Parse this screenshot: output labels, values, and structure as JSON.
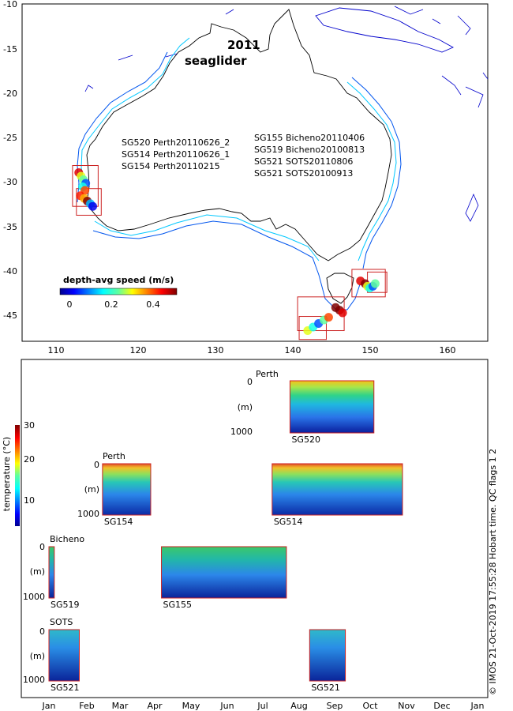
{
  "chart_data": [
    {
      "type": "map",
      "title": "2011",
      "subtitle": "seaglider",
      "xlim": [
        105,
        165
      ],
      "ylim": [
        -48,
        -10
      ],
      "xticks": [
        110,
        120,
        130,
        140,
        150,
        160
      ],
      "yticks": [
        -10,
        -15,
        -20,
        -25,
        -30,
        -35,
        -40,
        -45
      ],
      "deployments_west": [
        "SG520 Perth20110626_2",
        "SG514 Perth20110626_1",
        "SG154 Perth20110215"
      ],
      "deployments_east": [
        "SG155 Bicheno20110406",
        "SG519 Bicheno20100813",
        "SG521 SOTS20110806",
        "SG521 SOTS20100913"
      ],
      "colorbar": {
        "label": "depth-avg speed (m/s)",
        "ticks": [
          "0",
          "0.2",
          "0.4"
        ],
        "range": [
          0,
          0.5
        ]
      },
      "regions": [
        {
          "name": "perth-box-1",
          "lon": [
            111.5,
            114.8
          ],
          "lat": [
            -32.8,
            -28.2
          ]
        },
        {
          "name": "perth-box-2",
          "lon": [
            112.0,
            115.2
          ],
          "lat": [
            -33.8,
            -30.8
          ]
        },
        {
          "name": "bicheno-box-1",
          "lon": [
            147.5,
            151.8
          ],
          "lat": [
            -43.0,
            -39.9
          ]
        },
        {
          "name": "bicheno-box-2",
          "lon": [
            149.5,
            152.0
          ],
          "lat": [
            -42.5,
            -40.2
          ]
        },
        {
          "name": "sots-box-1",
          "lon": [
            140.5,
            146.5
          ],
          "lat": [
            -46.8,
            -43.0
          ]
        },
        {
          "name": "sots-box-2",
          "lon": [
            140.7,
            144.2
          ],
          "lat": [
            -47.8,
            -45.2
          ]
        }
      ],
      "tracks": [
        {
          "name": "track-perth-520",
          "lon": [
            112.3,
            112.6,
            112.9,
            113.2,
            112.8,
            113.1
          ],
          "lat": [
            -29.0,
            -29.4,
            -29.8,
            -30.2,
            -30.6,
            -31.0
          ],
          "speed": [
            0.45,
            0.3,
            0.25,
            0.1,
            0.2,
            0.4
          ]
        },
        {
          "name": "track-perth-514",
          "lon": [
            112.5,
            113.0,
            113.4,
            113.8,
            114.1
          ],
          "lat": [
            -31.6,
            -31.9,
            -32.2,
            -32.5,
            -32.8
          ],
          "speed": [
            0.42,
            0.35,
            0.5,
            0.15,
            0.05
          ]
        },
        {
          "name": "track-bicheno",
          "lon": [
            148.6,
            149.2,
            149.5,
            149.8,
            150.2,
            150.5
          ],
          "lat": [
            -41.2,
            -41.5,
            -41.8,
            -42.0,
            -41.8,
            -41.5
          ],
          "speed": [
            0.45,
            0.5,
            0.3,
            0.2,
            0.1,
            0.25
          ]
        },
        {
          "name": "track-sots-2011",
          "lon": [
            145.4,
            145.9,
            146.3
          ],
          "lat": [
            -44.2,
            -44.5,
            -44.8
          ],
          "speed": [
            0.5,
            0.5,
            0.45
          ]
        },
        {
          "name": "track-sots-2010",
          "lon": [
            141.8,
            142.5,
            143.2,
            143.9,
            144.5
          ],
          "lat": [
            -46.8,
            -46.4,
            -46.0,
            -45.6,
            -45.3
          ],
          "speed": [
            0.3,
            0.2,
            0.1,
            0.25,
            0.4
          ]
        }
      ]
    },
    {
      "type": "heatmap",
      "ylabel": "temperature (°C)",
      "colorbar_ticks": [
        "10",
        "20",
        "30"
      ],
      "colorbar_range": [
        0,
        30
      ],
      "months": [
        "Jan",
        "Feb",
        "Mar",
        "Apr",
        "May",
        "Jun",
        "Jul",
        "Aug",
        "Sep",
        "Oct",
        "Nov",
        "Dec",
        "Jan"
      ],
      "depth_ticks": [
        "0",
        "(m)",
        "1000"
      ],
      "row_labels": [
        "Perth",
        "Perth",
        "Bicheno",
        "SOTS"
      ],
      "sections": [
        {
          "glider": "SG520",
          "row": 0,
          "start_month": 6.75,
          "end_month": 9.1
        },
        {
          "glider": "SG154",
          "row": 1,
          "start_month": 1.5,
          "end_month": 2.85
        },
        {
          "glider": "SG514",
          "row": 1,
          "start_month": 6.25,
          "end_month": 9.9
        },
        {
          "glider": "SG519",
          "row": 2,
          "start_month": 0.0,
          "end_month": 0.15
        },
        {
          "glider": "SG155",
          "row": 2,
          "start_month": 3.15,
          "end_month": 6.65
        },
        {
          "glider": "SG521",
          "row": 3,
          "start_month": 0.0,
          "end_month": 0.85
        },
        {
          "glider": "SG521",
          "row": 3,
          "start_month": 7.3,
          "end_month": 8.3
        }
      ]
    }
  ],
  "side_note": "© IMOS 21-Oct-2019 17:55:28 Hobart time.  QC flags 1  2"
}
